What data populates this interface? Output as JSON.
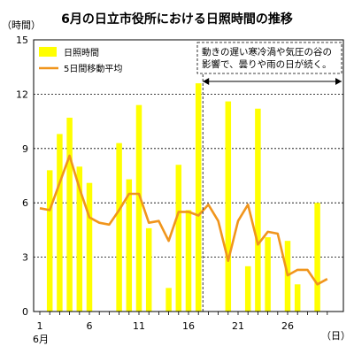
{
  "chart_data": {
    "type": "bar",
    "title": "6月の日立市役所における日照時間の推移",
    "ylabel": "（時間）",
    "xlabel": "（日）",
    "x_month_label": "6月",
    "ylim": [
      0,
      15
    ],
    "yticks": [
      0,
      3,
      6,
      9,
      12,
      15
    ],
    "xlim": [
      1,
      30
    ],
    "xticks": [
      1,
      6,
      11,
      16,
      21,
      26
    ],
    "grid": true,
    "legend_position": "top-left",
    "annotation": {
      "lines": [
        "動きの遅い寒冷渦や気圧の谷の",
        "影響で、曇りや雨の日が続く。"
      ],
      "arrow_from_day": 17,
      "arrow_to_day": 30
    },
    "colors": {
      "bar": "#ffff00",
      "line": "#f0951c",
      "grid": "#000000",
      "text": "#000000"
    },
    "x": [
      1,
      2,
      3,
      4,
      5,
      6,
      7,
      8,
      9,
      10,
      11,
      12,
      13,
      14,
      15,
      16,
      17,
      18,
      19,
      20,
      21,
      22,
      23,
      24,
      25,
      26,
      27,
      28,
      29,
      30
    ],
    "series": [
      {
        "name": "日照時間",
        "kind": "bar",
        "values": [
          0,
          7.8,
          9.8,
          10.7,
          8.0,
          7.1,
          0,
          0,
          9.3,
          7.3,
          11.4,
          4.6,
          0,
          1.3,
          8.1,
          5.6,
          12.6,
          0,
          0,
          11.6,
          0,
          2.5,
          11.2,
          4.1,
          0,
          3.9,
          1.5,
          0,
          6.0,
          0
        ]
      },
      {
        "name": "5日間移動平均",
        "kind": "line",
        "values": [
          5.7,
          5.6,
          7.1,
          8.6,
          6.8,
          5.2,
          4.9,
          4.8,
          5.6,
          6.5,
          6.5,
          4.9,
          5.0,
          3.9,
          5.5,
          5.5,
          5.3,
          5.9,
          5.0,
          2.8,
          5.0,
          5.9,
          3.7,
          4.4,
          4.3,
          2.0,
          2.3,
          2.3,
          1.5,
          1.8
        ]
      }
    ]
  }
}
